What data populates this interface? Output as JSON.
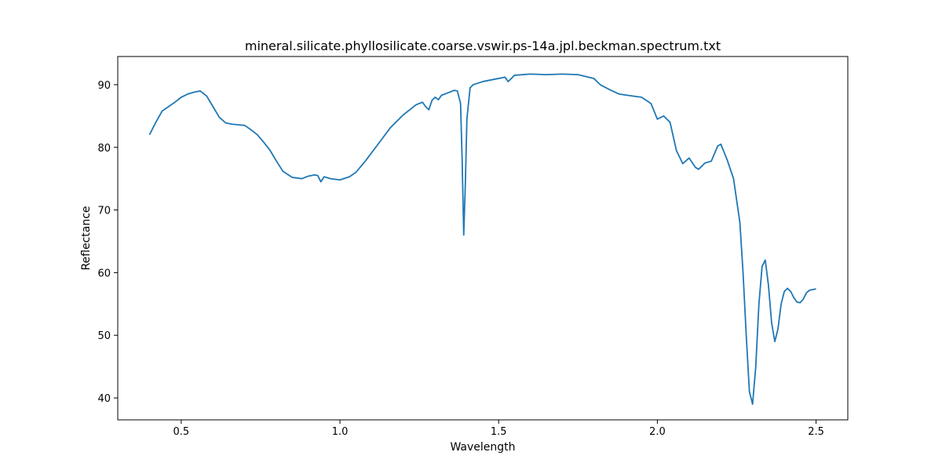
{
  "chart_data": {
    "type": "line",
    "title": "mineral.silicate.phyllosilicate.coarse.vswir.ps-14a.jpl.beckman.spectrum.txt",
    "xlabel": "Wavelength",
    "ylabel": "Reflectance",
    "xlim": [
      0.3,
      2.6
    ],
    "ylim": [
      36.5,
      94.5
    ],
    "xticks": [
      0.5,
      1.0,
      1.5,
      2.0,
      2.5
    ],
    "xtick_labels": [
      "0.5",
      "1.0",
      "1.5",
      "2.0",
      "2.5"
    ],
    "yticks": [
      40,
      50,
      60,
      70,
      80,
      90
    ],
    "ytick_labels": [
      "40",
      "50",
      "60",
      "70",
      "80",
      "90"
    ],
    "grid": false,
    "legend": "none",
    "line_color": "#1f77b4",
    "series": [
      {
        "x": [
          0.4,
          0.42,
          0.44,
          0.46,
          0.48,
          0.5,
          0.52,
          0.54,
          0.56,
          0.58,
          0.6,
          0.62,
          0.64,
          0.66,
          0.68,
          0.7,
          0.72,
          0.74,
          0.76,
          0.78,
          0.8,
          0.82,
          0.85,
          0.88,
          0.9,
          0.92,
          0.93,
          0.94,
          0.95,
          0.97,
          1.0,
          1.03,
          1.05,
          1.08,
          1.12,
          1.16,
          1.2,
          1.24,
          1.26,
          1.27,
          1.28,
          1.29,
          1.3,
          1.31,
          1.32,
          1.34,
          1.36,
          1.37,
          1.38,
          1.385,
          1.39,
          1.395,
          1.4,
          1.41,
          1.42,
          1.45,
          1.5,
          1.52,
          1.53,
          1.55,
          1.6,
          1.65,
          1.7,
          1.75,
          1.8,
          1.82,
          1.85,
          1.88,
          1.92,
          1.95,
          1.98,
          2.0,
          2.02,
          2.04,
          2.06,
          2.08,
          2.1,
          2.12,
          2.13,
          2.15,
          2.17,
          2.19,
          2.2,
          2.22,
          2.24,
          2.26,
          2.27,
          2.28,
          2.29,
          2.3,
          2.31,
          2.32,
          2.33,
          2.34,
          2.35,
          2.36,
          2.37,
          2.38,
          2.39,
          2.4,
          2.41,
          2.42,
          2.43,
          2.44,
          2.45,
          2.46,
          2.47,
          2.48,
          2.5
        ],
        "y": [
          82.0,
          84.0,
          85.8,
          86.5,
          87.2,
          88.0,
          88.5,
          88.8,
          89.0,
          88.2,
          86.5,
          84.8,
          83.9,
          83.7,
          83.6,
          83.5,
          82.8,
          82.0,
          80.8,
          79.5,
          77.8,
          76.2,
          75.2,
          75.0,
          75.4,
          75.6,
          75.5,
          74.5,
          75.3,
          75.0,
          74.8,
          75.3,
          76.0,
          77.8,
          80.5,
          83.2,
          85.2,
          86.8,
          87.2,
          86.5,
          86.0,
          87.5,
          88.0,
          87.6,
          88.3,
          88.7,
          89.1,
          89.0,
          87.0,
          78.0,
          66.0,
          74.0,
          84.5,
          89.5,
          90.0,
          90.5,
          91.0,
          91.2,
          90.5,
          91.5,
          91.7,
          91.6,
          91.7,
          91.6,
          91.0,
          90.0,
          89.2,
          88.5,
          88.2,
          88.0,
          87.0,
          84.5,
          85.0,
          84.0,
          79.5,
          77.4,
          78.3,
          76.8,
          76.5,
          77.5,
          77.8,
          80.2,
          80.5,
          78.0,
          75.0,
          68.0,
          60.0,
          50.0,
          41.0,
          39.0,
          45.0,
          55.0,
          61.0,
          62.0,
          58.0,
          52.0,
          49.0,
          51.0,
          55.0,
          57.0,
          57.5,
          57.0,
          56.0,
          55.3,
          55.2,
          55.8,
          56.8,
          57.2,
          57.4
        ]
      }
    ]
  }
}
